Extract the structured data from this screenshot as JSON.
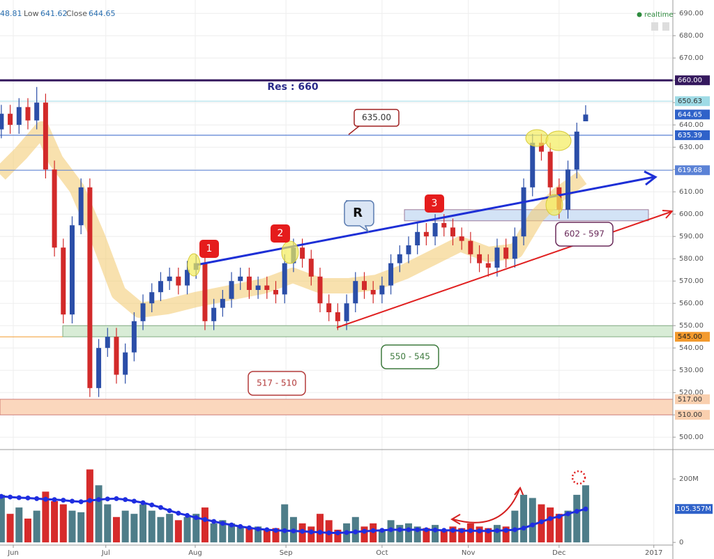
{
  "chart_data": {
    "type": "candlestick",
    "header": {
      "high_fragment": "48.81",
      "low_label": "Low",
      "close_label": "Close",
      "realtime": "realtime"
    },
    "x": [
      0,
      2,
      4,
      6,
      8,
      10,
      12,
      14,
      16,
      18,
      20,
      22,
      24,
      26,
      28,
      30,
      32,
      34,
      36,
      38,
      40,
      42,
      44,
      46,
      48,
      50,
      52,
      54,
      56,
      58,
      60,
      62,
      64,
      66,
      68,
      70,
      72,
      74,
      76,
      78,
      80,
      82,
      84,
      86,
      88,
      90,
      92,
      94,
      96,
      98,
      100,
      102,
      104,
      106,
      108,
      110,
      112,
      114,
      116,
      118,
      120,
      122,
      124,
      126,
      128,
      130,
      132
    ],
    "open": [
      638,
      645,
      640,
      648,
      642,
      650,
      620,
      585,
      555,
      595,
      612,
      522,
      540,
      545,
      528,
      538,
      552,
      560,
      565,
      570,
      572,
      568,
      575,
      578,
      552,
      558,
      562,
      570,
      572,
      566,
      568,
      566,
      564,
      578,
      585,
      580,
      572,
      560,
      556,
      552,
      560,
      570,
      566,
      564,
      568,
      578,
      582,
      586,
      592,
      590,
      596,
      594,
      590,
      588,
      582,
      578,
      576,
      585,
      580,
      590,
      612,
      632,
      628,
      612,
      602,
      620,
      641.62
    ],
    "high": [
      649,
      649,
      652,
      652,
      657,
      654,
      624,
      589,
      599,
      616,
      616,
      544,
      549,
      549,
      542,
      556,
      564,
      569,
      574,
      576,
      576,
      579,
      582,
      582,
      562,
      566,
      574,
      576,
      576,
      572,
      572,
      570,
      582,
      589,
      589,
      584,
      576,
      564,
      560,
      564,
      574,
      574,
      570,
      572,
      582,
      586,
      590,
      596,
      596,
      600,
      600,
      598,
      594,
      592,
      586,
      582,
      589,
      589,
      594,
      616,
      636,
      636,
      632,
      616,
      624,
      641,
      648.81
    ],
    "low": [
      634,
      636,
      636,
      638,
      638,
      616,
      581,
      551,
      551,
      591,
      518,
      518,
      536,
      524,
      524,
      534,
      548,
      556,
      561,
      566,
      564,
      564,
      571,
      548,
      548,
      554,
      558,
      566,
      562,
      562,
      562,
      560,
      560,
      574,
      576,
      568,
      556,
      552,
      548,
      548,
      556,
      562,
      560,
      560,
      564,
      574,
      578,
      582,
      586,
      586,
      590,
      586,
      584,
      578,
      574,
      572,
      572,
      576,
      576,
      586,
      608,
      624,
      608,
      598,
      598,
      616,
      641.62
    ],
    "close": [
      645,
      640,
      648,
      642,
      650,
      620,
      585,
      555,
      595,
      612,
      522,
      540,
      545,
      528,
      538,
      552,
      560,
      565,
      570,
      572,
      568,
      575,
      578,
      552,
      558,
      562,
      570,
      572,
      566,
      568,
      566,
      564,
      578,
      585,
      580,
      572,
      560,
      556,
      552,
      560,
      570,
      566,
      564,
      568,
      578,
      582,
      586,
      592,
      590,
      596,
      594,
      590,
      588,
      582,
      578,
      576,
      585,
      580,
      590,
      612,
      632,
      628,
      612,
      602,
      620,
      637,
      644.65
    ],
    "up_color": "#2b4ea8",
    "down_color": "#d22a2a",
    "xlim": [
      -0.3,
      151.7
    ],
    "xticks": [
      {
        "value": 2.7,
        "label": "Jun"
      },
      {
        "value": 23.6,
        "label": "Jul"
      },
      {
        "value": 43.8,
        "label": "Aug"
      },
      {
        "value": 64.3,
        "label": "Sep"
      },
      {
        "value": 86,
        "label": "Oct"
      },
      {
        "value": 105.5,
        "label": "Nov"
      },
      {
        "value": 126,
        "label": "Dec"
      },
      {
        "value": 147.4,
        "label": "2017"
      }
    ],
    "ylim": [
      496,
      696
    ],
    "yticks": [
      {
        "value": 500,
        "label": "500.00"
      },
      {
        "value": 510,
        "label": "510.00"
      },
      {
        "value": 520,
        "label": "520.00"
      },
      {
        "value": 530,
        "label": "530.00"
      },
      {
        "value": 540,
        "label": "540.00"
      },
      {
        "value": 550,
        "label": "550.00"
      },
      {
        "value": 560,
        "label": "560.00"
      },
      {
        "value": 570,
        "label": "570.00"
      },
      {
        "value": 580,
        "label": "580.00"
      },
      {
        "value": 590,
        "label": "590.00"
      },
      {
        "value": 600,
        "label": "600.00"
      },
      {
        "value": 610,
        "label": "610.00"
      },
      {
        "value": 620,
        "label": "620.00"
      },
      {
        "value": 630,
        "label": "630.00"
      },
      {
        "value": 640,
        "label": "640.00"
      },
      {
        "value": 650,
        "label": "650.00"
      },
      {
        "value": 660,
        "label": "660.00"
      },
      {
        "value": 670,
        "label": "670.00"
      },
      {
        "value": 680,
        "label": "680.00"
      },
      {
        "value": 690,
        "label": "690.00"
      }
    ],
    "grid": true,
    "levels": [
      {
        "value": 660,
        "label": "660.00",
        "color": "#35195e",
        "text_color": "#ffffff",
        "line": true,
        "line_width": 3
      },
      {
        "value": 650.63,
        "label": "650.63",
        "color": "#9fdbe6",
        "text_color": "#333333",
        "line": true,
        "line_width": 1
      },
      {
        "value": 644.65,
        "label": "644.65",
        "color": "#2f62c9",
        "text_color": "#ffffff",
        "line": false,
        "line_width": 0
      },
      {
        "value": 635.39,
        "label": "635.39",
        "color": "#2f62c9",
        "text_color": "#ffffff",
        "line": true,
        "line_width": 1
      },
      {
        "value": 619.68,
        "label": "619.68",
        "color": "#5b82d6",
        "text_color": "#ffffff",
        "line": true,
        "line_width": 1
      },
      {
        "value": 545,
        "label": "545.00",
        "color": "#f39a2d",
        "text_color": "#222222",
        "line": true,
        "line_width": 1
      },
      {
        "value": 517,
        "label": "517.00",
        "color": "#f9cfae",
        "text_color": "#333333",
        "line": false,
        "line_width": 0
      },
      {
        "value": 510,
        "label": "510.00",
        "color": "#f9cfae",
        "text_color": "#333333",
        "line": false,
        "line_width": 0
      }
    ],
    "zones": [
      {
        "from": 510,
        "to": 517,
        "label": "517 - 510",
        "color": "#fbd7bd",
        "border": "#b33a3a"
      },
      {
        "from": 545,
        "to": 550,
        "label": "550 - 545",
        "color": "#d8ecd6",
        "border": "#3d7a3d"
      },
      {
        "from": 597,
        "to": 602,
        "label": "602 - 597",
        "color": "#d3e3f6",
        "border": "#6a2a5a"
      }
    ],
    "annotations": {
      "resistance": "Res : 660",
      "callout": "635.00",
      "r_mark": "R",
      "markers": [
        "1",
        "2",
        "3"
      ]
    },
    "volume": {
      "values": [
        150,
        90,
        110,
        75,
        100,
        160,
        130,
        120,
        100,
        95,
        230,
        180,
        120,
        80,
        100,
        90,
        120,
        100,
        80,
        90,
        70,
        80,
        90,
        110,
        60,
        70,
        60,
        50,
        45,
        50,
        40,
        45,
        120,
        80,
        60,
        50,
        90,
        70,
        40,
        60,
        80,
        50,
        60,
        40,
        70,
        55,
        60,
        50,
        45,
        55,
        40,
        50,
        45,
        60,
        50,
        45,
        55,
        50,
        100,
        150,
        140,
        120,
        110,
        90,
        100,
        150,
        180
      ],
      "ma": [
        145,
        143,
        141,
        140,
        138,
        136,
        135,
        133,
        130,
        128,
        132,
        135,
        137,
        138,
        135,
        130,
        125,
        118,
        110,
        100,
        92,
        85,
        78,
        72,
        66,
        60,
        55,
        50,
        46,
        42,
        40,
        38,
        37,
        36,
        35,
        33,
        32,
        30,
        30,
        31,
        33,
        35,
        37,
        38,
        40,
        40,
        40,
        40,
        40,
        39,
        38,
        38,
        37,
        37,
        36,
        36,
        37,
        38,
        40,
        45,
        55,
        65,
        75,
        82,
        90,
        98,
        105.357
      ],
      "ma_color": "#1f2ee0",
      "up_color": "#4e7d89",
      "down_color": "#d62b2b",
      "ylim": [
        -26,
        286
      ],
      "yticks": [
        0,
        {
          "value": 200,
          "label": "200M"
        }
      ],
      "ma_marker": {
        "value": 105.357,
        "label": "105.357M"
      }
    }
  }
}
